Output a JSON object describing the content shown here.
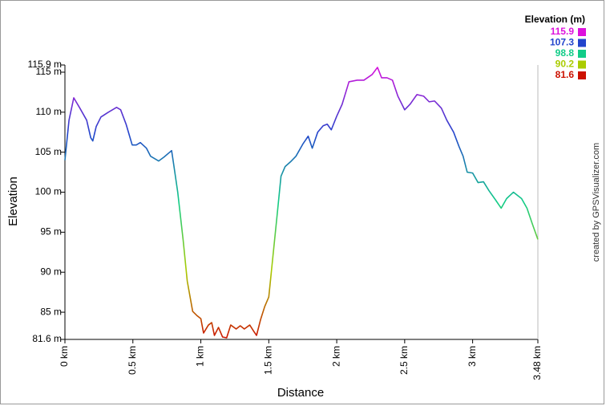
{
  "chart_data": {
    "type": "line",
    "xlabel": "Distance",
    "ylabel": "Elevation",
    "credit": "created by GPSVisualizer.com",
    "x": [
      0,
      0.03,
      0.065,
      0.11,
      0.16,
      0.19,
      0.205,
      0.23,
      0.265,
      0.32,
      0.38,
      0.41,
      0.45,
      0.495,
      0.525,
      0.555,
      0.6,
      0.63,
      0.69,
      0.73,
      0.785,
      0.8,
      0.83,
      0.87,
      0.9,
      0.94,
      0.97,
      1.0,
      1.02,
      1.056,
      1.08,
      1.1,
      1.13,
      1.16,
      1.19,
      1.22,
      1.26,
      1.29,
      1.32,
      1.36,
      1.39,
      1.41,
      1.44,
      1.47,
      1.5,
      1.53,
      1.56,
      1.59,
      1.62,
      1.66,
      1.7,
      1.75,
      1.79,
      1.82,
      1.86,
      1.9,
      1.93,
      1.96,
      2.0,
      2.04,
      2.09,
      2.15,
      2.2,
      2.26,
      2.3,
      2.33,
      2.37,
      2.41,
      2.45,
      2.5,
      2.54,
      2.59,
      2.64,
      2.68,
      2.72,
      2.77,
      2.81,
      2.86,
      2.9,
      2.93,
      2.96,
      3.0,
      3.04,
      3.08,
      3.12,
      3.17,
      3.21,
      3.25,
      3.3,
      3.36,
      3.4,
      3.44,
      3.48
    ],
    "values": [
      104.0,
      109,
      111.8,
      110.5,
      109,
      106.8,
      106.4,
      108.2,
      109.4,
      110,
      110.6,
      110.3,
      108.5,
      105.9,
      105.9,
      106.2,
      105.5,
      104.5,
      103.9,
      104.4,
      105.2,
      103.5,
      100,
      94,
      88.9,
      85.1,
      84.6,
      84.2,
      82.4,
      83.4,
      83.7,
      82.1,
      83.1,
      81.9,
      81.8,
      83.4,
      82.9,
      83.3,
      82.9,
      83.4,
      82.6,
      82.1,
      84.1,
      85.7,
      86.9,
      91.9,
      96.9,
      102,
      103.2,
      103.8,
      104.5,
      106,
      107,
      105.5,
      107.5,
      108.3,
      108.5,
      107.8,
      109.5,
      111,
      113.8,
      114,
      114,
      114.7,
      115.6,
      114.3,
      114.3,
      114,
      112,
      110.3,
      111,
      112.2,
      112,
      111.3,
      111.4,
      110.5,
      109,
      107.5,
      105.7,
      104.5,
      102.5,
      102.4,
      101.2,
      101.3,
      100.2,
      99,
      98,
      99.2,
      100,
      99.2,
      98,
      96,
      94.1
    ],
    "xlim": [
      0,
      3.48
    ],
    "ylim": [
      81.6,
      115.9
    ],
    "xticks": [
      {
        "value": 0,
        "label": "0 km"
      },
      {
        "value": 0.5,
        "label": "0.5 km"
      },
      {
        "value": 1,
        "label": "1 km"
      },
      {
        "value": 1.5,
        "label": "1.5 km"
      },
      {
        "value": 2,
        "label": "2 km"
      },
      {
        "value": 2.5,
        "label": "2.5 km"
      },
      {
        "value": 3,
        "label": "3 km"
      },
      {
        "value": 3.48,
        "label": "3.48 km"
      }
    ],
    "yticks": [
      {
        "value": 81.6,
        "label": "81.6 m"
      },
      {
        "value": 85,
        "label": "85 m"
      },
      {
        "value": 90,
        "label": "90 m"
      },
      {
        "value": 95,
        "label": "95 m"
      },
      {
        "value": 100,
        "label": "100 m"
      },
      {
        "value": 105,
        "label": "105 m"
      },
      {
        "value": 110,
        "label": "110 m"
      },
      {
        "value": 115,
        "label": "115 m"
      },
      {
        "value": 115.9,
        "label": "115.9 m"
      }
    ],
    "legend": {
      "title": "Elevation (m)",
      "entries": [
        {
          "value": 115.9,
          "color": "#dd11dd"
        },
        {
          "value": 107.3,
          "color": "#2244cc"
        },
        {
          "value": 98.8,
          "color": "#11cc88"
        },
        {
          "value": 90.2,
          "color": "#aacc00"
        },
        {
          "value": 81.6,
          "color": "#cc1100"
        }
      ]
    }
  }
}
